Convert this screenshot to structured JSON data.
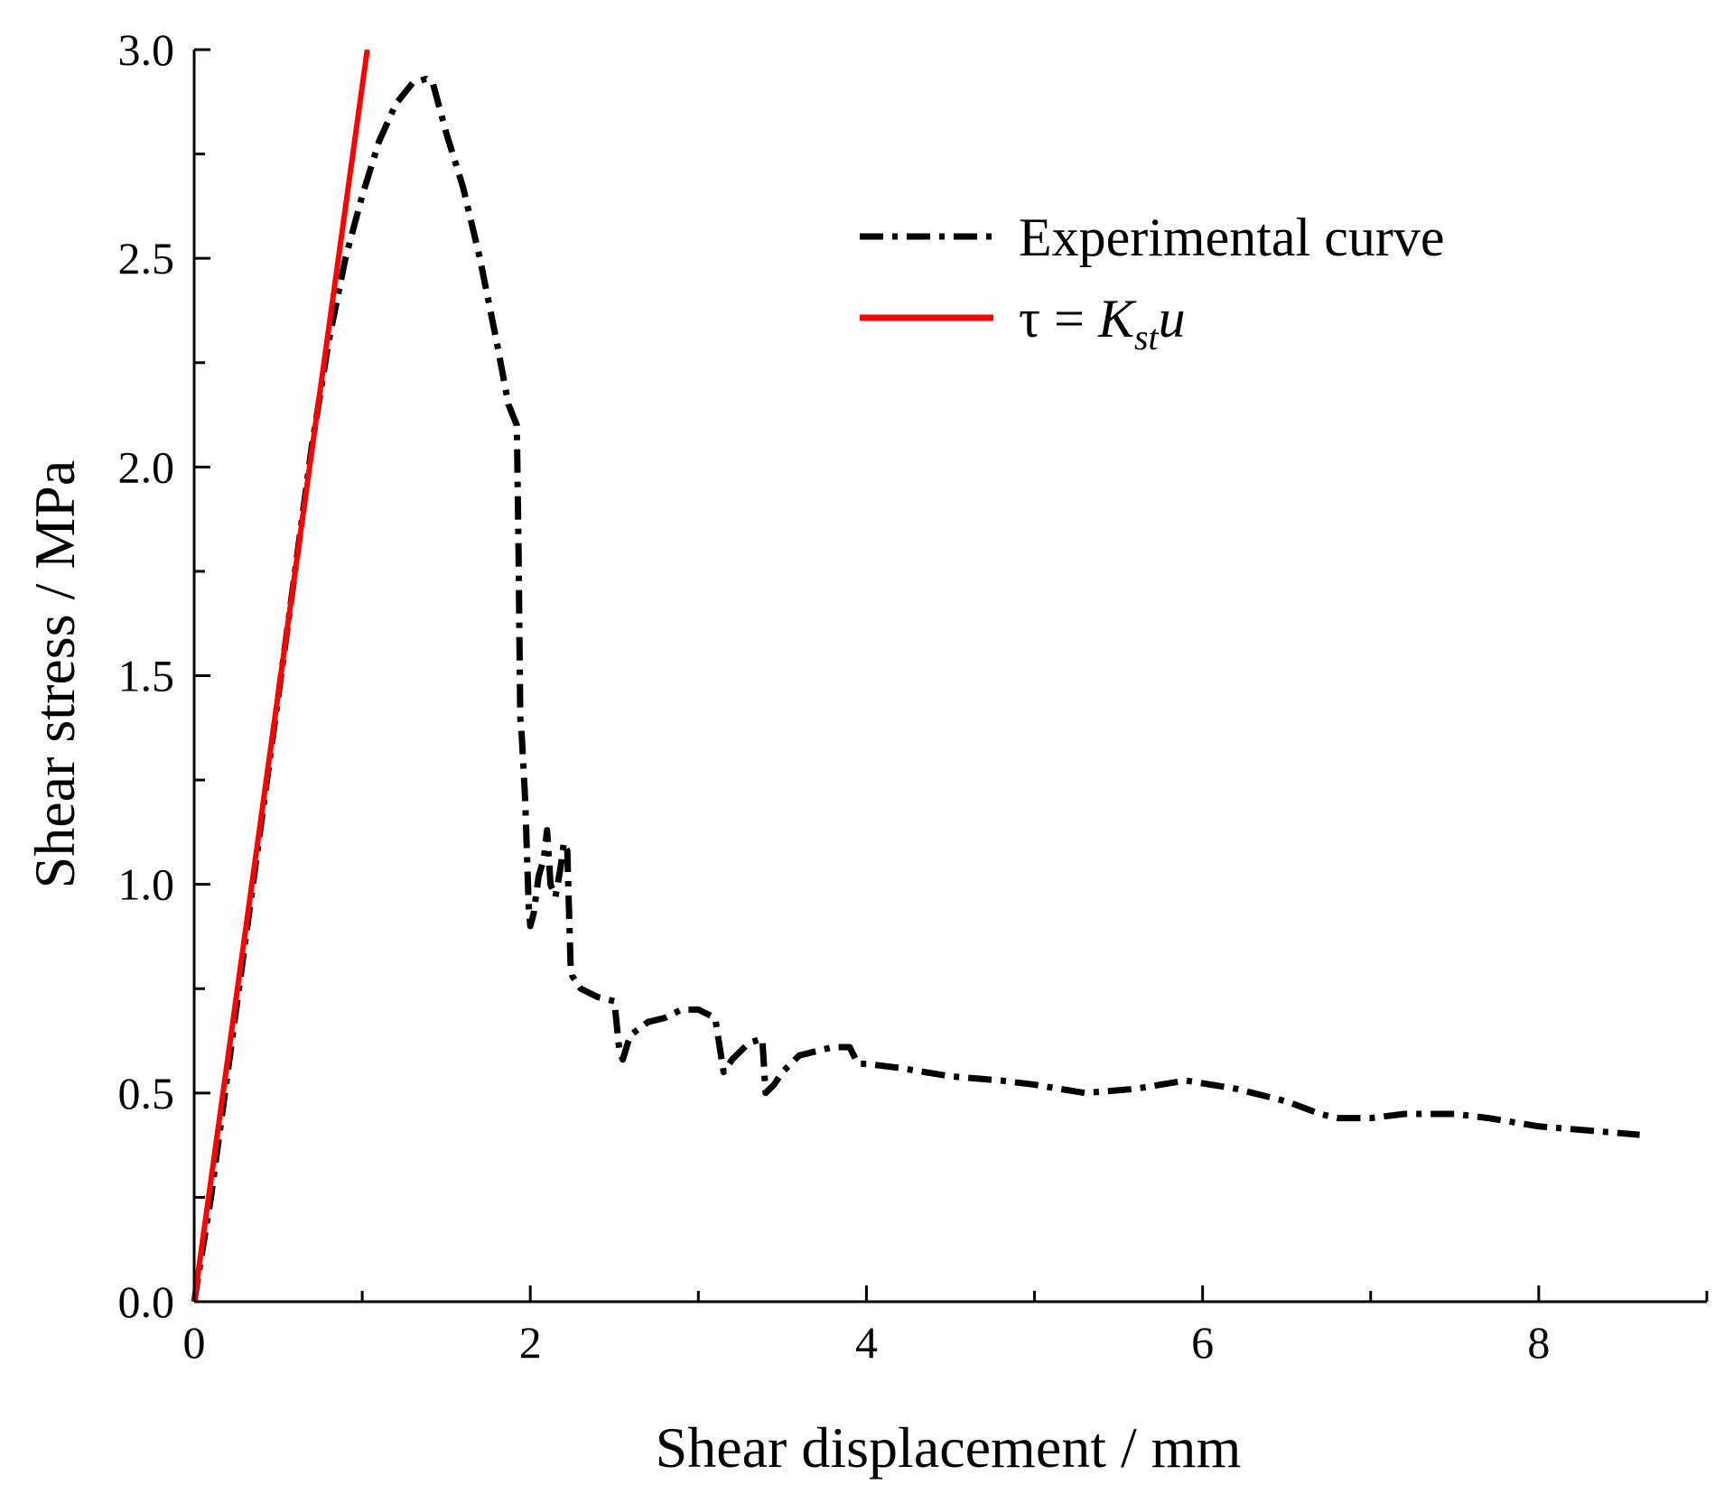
{
  "chart_data": {
    "type": "line",
    "title": "",
    "xlabel": "Shear displacement / mm",
    "ylabel": "Shear stress / MPa",
    "xlim": [
      0,
      9
    ],
    "ylim": [
      0,
      3.0
    ],
    "x_ticks": [
      0,
      2,
      4,
      6,
      8
    ],
    "x_tick_labels": [
      "0",
      "2",
      "4",
      "6",
      "8"
    ],
    "y_ticks": [
      0,
      0.5,
      1.0,
      1.5,
      2.0,
      2.5,
      3.0
    ],
    "y_tick_labels": [
      "0.0",
      "0.5",
      "1.0",
      "1.5",
      "2.0",
      "2.5",
      "3.0"
    ],
    "legend_position": "top-right",
    "series": [
      {
        "name": "Experimental curve",
        "style": "dash-dot",
        "color": "#000000",
        "x": [
          0,
          0.1,
          0.2,
          0.3,
          0.4,
          0.5,
          0.6,
          0.7,
          0.8,
          0.9,
          1.0,
          1.1,
          1.2,
          1.3,
          1.38,
          1.42,
          1.5,
          1.6,
          1.7,
          1.8,
          1.87,
          1.92,
          1.93,
          1.94,
          1.95,
          1.97,
          1.99,
          2.0,
          2.02,
          2.05,
          2.08,
          2.1,
          2.12,
          2.15,
          2.18,
          2.2,
          2.22,
          2.24,
          2.25,
          2.3,
          2.4,
          2.5,
          2.53,
          2.55,
          2.58,
          2.6,
          2.7,
          2.8,
          2.9,
          3.0,
          3.1,
          3.15,
          3.2,
          3.3,
          3.38,
          3.4,
          3.45,
          3.5,
          3.6,
          3.7,
          3.8,
          3.9,
          3.95,
          4.0,
          4.2,
          4.5,
          4.8,
          5.0,
          5.3,
          5.6,
          5.9,
          6.2,
          6.5,
          6.7,
          6.8,
          7.0,
          7.2,
          7.5,
          7.7,
          8.0,
          8.3,
          8.6
        ],
        "y": [
          0,
          0.25,
          0.55,
          0.85,
          1.15,
          1.45,
          1.75,
          2.05,
          2.3,
          2.5,
          2.65,
          2.78,
          2.87,
          2.92,
          2.93,
          2.92,
          2.8,
          2.67,
          2.5,
          2.3,
          2.15,
          2.1,
          1.8,
          1.4,
          1.35,
          1.2,
          0.95,
          0.9,
          0.93,
          1.02,
          1.06,
          1.13,
          1.0,
          0.97,
          1.04,
          1.1,
          1.08,
          0.8,
          0.78,
          0.75,
          0.73,
          0.72,
          0.6,
          0.58,
          0.62,
          0.64,
          0.67,
          0.68,
          0.7,
          0.7,
          0.68,
          0.55,
          0.58,
          0.62,
          0.63,
          0.5,
          0.52,
          0.55,
          0.59,
          0.6,
          0.61,
          0.61,
          0.57,
          0.57,
          0.56,
          0.54,
          0.53,
          0.52,
          0.5,
          0.51,
          0.53,
          0.51,
          0.48,
          0.45,
          0.44,
          0.44,
          0.45,
          0.45,
          0.44,
          0.42,
          0.41,
          0.4
        ]
      },
      {
        "name": "τ = Kstu",
        "legend_parts": {
          "prefix": "τ = ",
          "k": "K",
          "sub": "st",
          "u": "u"
        },
        "style": "solid",
        "color": "#ff0000",
        "x": [
          0,
          1.03
        ],
        "y": [
          0,
          3.0
        ]
      }
    ]
  }
}
